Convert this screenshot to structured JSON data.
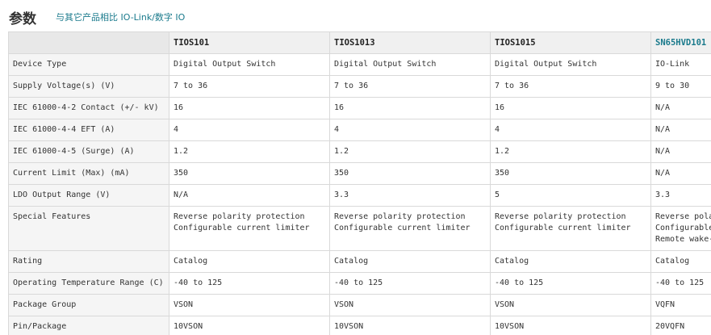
{
  "header": {
    "title": "参数",
    "compare_link": "与其它产品相比 IO-Link/数字 IO"
  },
  "table": {
    "columns": [
      "TIOS101",
      "TIOS1013",
      "TIOS1015",
      "SN65HVD101"
    ],
    "rows": [
      {
        "label": "Device Type",
        "values": [
          "Digital Output Switch",
          "Digital Output Switch",
          "Digital Output Switch",
          "IO-Link"
        ]
      },
      {
        "label": "Supply Voltage(s) (V)",
        "values": [
          "7 to 36",
          "7 to 36",
          "7 to 36",
          "9 to 30"
        ]
      },
      {
        "label": "IEC 61000-4-2 Contact (+/- kV)",
        "values": [
          "16",
          "16",
          "16",
          "N/A"
        ]
      },
      {
        "label": "IEC 61000-4-4 EFT (A)",
        "values": [
          "4",
          "4",
          "4",
          "N/A"
        ]
      },
      {
        "label": "IEC 61000-4-5 (Surge) (A)",
        "values": [
          "1.2",
          "1.2",
          "1.2",
          "N/A"
        ]
      },
      {
        "label": "Current Limit (Max) (mA)",
        "values": [
          "350",
          "350",
          "350",
          "N/A"
        ]
      },
      {
        "label": "LDO Output Range (V)",
        "values": [
          "N/A",
          "3.3",
          "5",
          "3.3"
        ]
      }
    ],
    "special_features": {
      "label": "Special Features",
      "values": [
        [
          "Reverse polarity protection",
          "Configurable current limiter"
        ],
        [
          "Reverse polarity protection",
          "Configurable current limiter"
        ],
        [
          "Reverse polarity protection",
          "Configurable current limiter"
        ],
        [
          "Reverse polarity protection",
          "Configurable current limiter",
          "Remote wake-up"
        ]
      ]
    },
    "rows_after": [
      {
        "label": "Rating",
        "values": [
          "Catalog",
          "Catalog",
          "Catalog",
          "Catalog"
        ]
      },
      {
        "label": "Operating Temperature Range (C)",
        "values": [
          "-40 to 125",
          "-40 to 125",
          "-40 to 125",
          "-40 to 125"
        ]
      },
      {
        "label": "Package Group",
        "values": [
          "VSON",
          "VSON",
          "VSON",
          "VQFN"
        ]
      },
      {
        "label": "Pin/Package",
        "values": [
          "10VSON",
          "10VSON",
          "10VSON",
          "20VQFN"
        ]
      }
    ]
  }
}
